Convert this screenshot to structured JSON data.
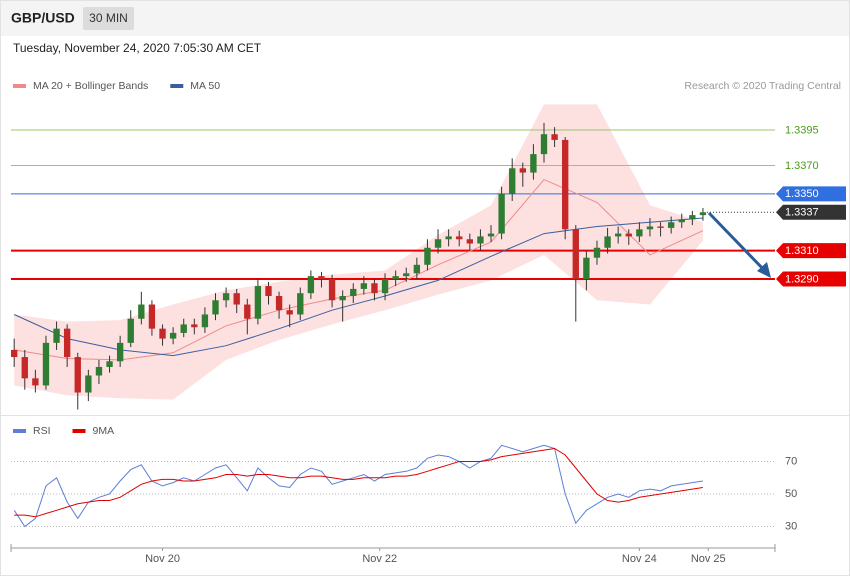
{
  "header": {
    "symbol": "GBP/USD",
    "interval": "30 MIN",
    "timestamp": "Tuesday, November 24, 2020 7:05:30 AM CET",
    "credit": "Research © 2020 Trading Central"
  },
  "chart_data": [
    {
      "type": "candlestick",
      "up_color": "#2e7d32",
      "down_color": "#c62828",
      "xlim": [
        -0.6,
        143.6
      ],
      "ylim": [
        1.3195,
        1.342
      ],
      "x": [
        0,
        2,
        4,
        6,
        8,
        10,
        12,
        14,
        16,
        18,
        20,
        22,
        24,
        26,
        28,
        30,
        32,
        34,
        36,
        38,
        40,
        42,
        44,
        46,
        48,
        50,
        52,
        54,
        56,
        58,
        60,
        62,
        64,
        66,
        68,
        70,
        72,
        74,
        76,
        78,
        80,
        82,
        84,
        86,
        88,
        90,
        92,
        94,
        96,
        98,
        100,
        102,
        104,
        106,
        108,
        110,
        112,
        114,
        116,
        118,
        120,
        122,
        124,
        126,
        128,
        130
      ],
      "open": [
        1.324,
        1.3235,
        1.322,
        1.3215,
        1.3245,
        1.3255,
        1.3235,
        1.321,
        1.3222,
        1.3228,
        1.3232,
        1.3245,
        1.3262,
        1.3272,
        1.3255,
        1.3248,
        1.3252,
        1.3258,
        1.3256,
        1.3265,
        1.3275,
        1.328,
        1.3272,
        1.3262,
        1.3285,
        1.3278,
        1.3268,
        1.3265,
        1.328,
        1.3292,
        1.329,
        1.3275,
        1.3278,
        1.3283,
        1.3287,
        1.328,
        1.329,
        1.3292,
        1.3294,
        1.33,
        1.3312,
        1.3318,
        1.332,
        1.3318,
        1.3315,
        1.332,
        1.3322,
        1.335,
        1.3368,
        1.3365,
        1.3378,
        1.3392,
        1.3388,
        1.3325,
        1.329,
        1.3305,
        1.3312,
        1.332,
        1.3322,
        1.332,
        1.3325,
        1.3327,
        1.3326,
        1.333,
        1.3332,
        1.3335
      ],
      "high": [
        1.3248,
        1.324,
        1.3226,
        1.325,
        1.326,
        1.3258,
        1.3238,
        1.3226,
        1.3233,
        1.3236,
        1.325,
        1.3268,
        1.3281,
        1.3275,
        1.3258,
        1.3256,
        1.3262,
        1.3262,
        1.327,
        1.328,
        1.3284,
        1.3283,
        1.3276,
        1.329,
        1.3288,
        1.3281,
        1.3272,
        1.3284,
        1.3296,
        1.3295,
        1.3293,
        1.3282,
        1.3287,
        1.3292,
        1.329,
        1.3294,
        1.3296,
        1.3298,
        1.3305,
        1.3318,
        1.3325,
        1.3325,
        1.3324,
        1.3322,
        1.3325,
        1.3328,
        1.3355,
        1.3375,
        1.3372,
        1.3385,
        1.34,
        1.3397,
        1.339,
        1.3328,
        1.331,
        1.3317,
        1.3326,
        1.3327,
        1.3325,
        1.333,
        1.3333,
        1.333,
        1.3334,
        1.3336,
        1.3338,
        1.334
      ],
      "low": [
        1.3228,
        1.3212,
        1.321,
        1.3212,
        1.324,
        1.3228,
        1.3198,
        1.3204,
        1.3216,
        1.3224,
        1.3228,
        1.3242,
        1.3258,
        1.325,
        1.3243,
        1.3244,
        1.3249,
        1.3251,
        1.3252,
        1.3261,
        1.327,
        1.3266,
        1.3251,
        1.3258,
        1.3272,
        1.3262,
        1.3256,
        1.3261,
        1.3276,
        1.3284,
        1.327,
        1.326,
        1.3273,
        1.3279,
        1.3275,
        1.3275,
        1.3285,
        1.3288,
        1.329,
        1.3296,
        1.3308,
        1.3313,
        1.3313,
        1.331,
        1.331,
        1.3316,
        1.3318,
        1.3345,
        1.3355,
        1.336,
        1.3372,
        1.3383,
        1.3318,
        1.326,
        1.3282,
        1.33,
        1.3308,
        1.3315,
        1.3314,
        1.3316,
        1.332,
        1.332,
        1.3322,
        1.3326,
        1.3328,
        1.3331
      ],
      "close": [
        1.3235,
        1.322,
        1.3215,
        1.3245,
        1.3255,
        1.3235,
        1.321,
        1.3222,
        1.3228,
        1.3232,
        1.3245,
        1.3262,
        1.3272,
        1.3255,
        1.3248,
        1.3252,
        1.3258,
        1.3256,
        1.3265,
        1.3275,
        1.328,
        1.3272,
        1.3262,
        1.3285,
        1.3278,
        1.3268,
        1.3265,
        1.328,
        1.3292,
        1.329,
        1.3275,
        1.3278,
        1.3283,
        1.3287,
        1.328,
        1.329,
        1.3292,
        1.3294,
        1.33,
        1.3312,
        1.3318,
        1.332,
        1.3318,
        1.3315,
        1.332,
        1.3322,
        1.335,
        1.3368,
        1.3365,
        1.3378,
        1.3392,
        1.3388,
        1.3325,
        1.329,
        1.3305,
        1.3312,
        1.332,
        1.3322,
        1.332,
        1.3325,
        1.3327,
        1.3326,
        1.333,
        1.3332,
        1.3335,
        1.3337
      ],
      "series": [
        {
          "name": "MA 20 + Bollinger Bands",
          "color": "#f08a8a",
          "band_color": "#fde0e0",
          "x": [
            0,
            10,
            20,
            30,
            40,
            50,
            60,
            70,
            80,
            90,
            100,
            110,
            120,
            130
          ],
          "values": [
            1.324,
            1.3234,
            1.3233,
            1.3238,
            1.3257,
            1.3268,
            1.3276,
            1.3282,
            1.33,
            1.3316,
            1.336,
            1.3344,
            1.3307,
            1.3324
          ],
          "upper": [
            1.3265,
            1.326,
            1.3261,
            1.3272,
            1.3282,
            1.3288,
            1.3293,
            1.3296,
            1.3321,
            1.3342,
            1.3413,
            1.3413,
            1.3342,
            1.333
          ],
          "lower": [
            1.3215,
            1.3208,
            1.3206,
            1.3205,
            1.3233,
            1.3247,
            1.3258,
            1.3268,
            1.3279,
            1.3289,
            1.3307,
            1.3275,
            1.3272,
            1.3317
          ]
        },
        {
          "name": "MA 50",
          "color": "#3a5fa0",
          "x": [
            0,
            10,
            20,
            30,
            40,
            50,
            60,
            70,
            80,
            90,
            100,
            110,
            120,
            130
          ],
          "values": [
            1.3265,
            1.3248,
            1.324,
            1.3236,
            1.3243,
            1.3255,
            1.3268,
            1.3278,
            1.3289,
            1.3306,
            1.3322,
            1.3327,
            1.333,
            1.3333
          ]
        }
      ],
      "levels": [
        {
          "value": 1.3395,
          "label": "1.3395",
          "color": "#9cc46a",
          "text_color": "#4c9a1a",
          "line_width": 1,
          "boxed": false
        },
        {
          "value": 1.337,
          "label": "1.3370",
          "color": "#9cc46a",
          "text_color": "#4c9a1a",
          "line_width": 1,
          "boxed": false
        },
        {
          "value": 1.335,
          "label": "1.3350",
          "color": "#2f6fe0",
          "text_color": "#ffffff",
          "line_width": 1,
          "boxed": true
        },
        {
          "value": 1.331,
          "label": "1.3310",
          "color": "#e60000",
          "text_color": "#ffffff",
          "line_width": 2,
          "boxed": true
        },
        {
          "value": 1.329,
          "label": "1.3290",
          "color": "#e60000",
          "text_color": "#ffffff",
          "line_width": 2,
          "boxed": true
        }
      ],
      "current": {
        "value": 1.3337,
        "label": "1.3337",
        "color": "#333333"
      }
    },
    {
      "type": "line",
      "xlim": [
        -0.6,
        143.6
      ],
      "ylim": [
        20,
        84
      ],
      "yticks": [
        30,
        50,
        70
      ],
      "xticks": [
        {
          "value": 28,
          "label": "Nov 20"
        },
        {
          "value": 69,
          "label": "Nov 22"
        },
        {
          "value": 118,
          "label": "Nov 24"
        },
        {
          "value": 131,
          "label": "Nov 25"
        }
      ],
      "x": [
        0,
        2,
        4,
        6,
        8,
        10,
        12,
        14,
        16,
        18,
        20,
        22,
        24,
        26,
        28,
        30,
        32,
        34,
        36,
        38,
        40,
        42,
        44,
        46,
        48,
        50,
        52,
        54,
        56,
        58,
        60,
        62,
        64,
        66,
        68,
        70,
        72,
        74,
        76,
        78,
        80,
        82,
        84,
        86,
        88,
        90,
        92,
        94,
        96,
        98,
        100,
        102,
        104,
        106,
        108,
        110,
        112,
        114,
        116,
        118,
        120,
        122,
        124,
        126,
        128,
        130
      ],
      "series": [
        {
          "name": "RSI",
          "color": "#5b7fd6",
          "values": [
            40,
            30,
            35,
            55,
            60,
            45,
            35,
            45,
            48,
            50,
            58,
            65,
            68,
            58,
            55,
            57,
            60,
            58,
            62,
            66,
            68,
            60,
            52,
            66,
            60,
            55,
            54,
            62,
            66,
            64,
            56,
            58,
            60,
            62,
            58,
            62,
            63,
            64,
            66,
            72,
            74,
            73,
            70,
            66,
            70,
            72,
            80,
            78,
            76,
            78,
            80,
            78,
            50,
            32,
            40,
            44,
            48,
            50,
            48,
            52,
            53,
            52,
            55,
            56,
            57,
            58
          ]
        },
        {
          "name": "9MA",
          "color": "#e00000",
          "values": [
            37,
            37,
            36,
            38,
            40,
            42,
            44,
            45,
            46,
            46,
            48,
            52,
            56,
            58,
            59,
            59,
            58,
            58,
            59,
            60,
            62,
            62,
            61,
            62,
            62,
            61,
            60,
            60,
            61,
            61,
            60,
            59,
            59,
            60,
            60,
            60,
            61,
            61,
            62,
            64,
            66,
            68,
            70,
            70,
            70,
            71,
            73,
            74,
            75,
            76,
            77,
            78,
            74,
            66,
            58,
            50,
            46,
            45,
            46,
            48,
            49,
            50,
            51,
            52,
            53,
            54
          ]
        }
      ]
    }
  ]
}
